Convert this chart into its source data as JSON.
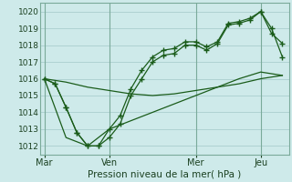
{
  "bg_color": "#ceeaea",
  "grid_color": "#aacece",
  "line_color": "#1a5c1a",
  "xlabel": "Pression niveau de la mer( hPa )",
  "ylim": [
    1011.5,
    1020.5
  ],
  "yticks": [
    1012,
    1013,
    1014,
    1015,
    1016,
    1017,
    1018,
    1019,
    1020
  ],
  "day_labels": [
    "Mar",
    "Ven",
    "Mer",
    "Jeu"
  ],
  "day_positions": [
    0,
    3,
    7,
    10
  ],
  "xlim": [
    -0.2,
    11.3
  ],
  "series_flat_x": [
    0,
    1,
    2,
    3,
    4,
    5,
    6,
    7,
    8,
    9,
    10,
    11
  ],
  "series_flat_y": [
    1016.0,
    1015.8,
    1015.5,
    1015.3,
    1015.1,
    1015.0,
    1015.1,
    1015.3,
    1015.5,
    1015.7,
    1016.0,
    1016.2
  ],
  "series_low_x": [
    0,
    0.5,
    1,
    1.5,
    2,
    2.5,
    3,
    3.5,
    4,
    4.5,
    5,
    5.5,
    6,
    6.5,
    7,
    7.5,
    8,
    8.5,
    9,
    9.5,
    10,
    10.5,
    11
  ],
  "series_low_y": [
    1016.0,
    1015.7,
    1014.3,
    1012.8,
    1012.0,
    1012.0,
    1012.5,
    1013.3,
    1015.0,
    1016.0,
    1017.0,
    1017.4,
    1017.5,
    1018.0,
    1018.0,
    1017.7,
    1018.1,
    1019.2,
    1019.3,
    1019.5,
    1020.0,
    1018.7,
    1018.1
  ],
  "series_hi_x": [
    0,
    0.5,
    1,
    1.5,
    2,
    2.5,
    3,
    3.5,
    4,
    4.5,
    5,
    5.5,
    6,
    6.5,
    7,
    7.5,
    8,
    8.5,
    9,
    9.5,
    10,
    10.5,
    11
  ],
  "series_hi_y": [
    1016.0,
    1015.7,
    1014.3,
    1012.8,
    1012.0,
    1012.0,
    1013.0,
    1013.8,
    1015.4,
    1016.5,
    1017.3,
    1017.7,
    1017.8,
    1018.2,
    1018.2,
    1017.9,
    1018.2,
    1019.3,
    1019.4,
    1019.6,
    1020.0,
    1019.0,
    1017.3
  ],
  "series_bot_x": [
    0,
    1,
    2,
    3,
    4,
    5,
    6,
    7,
    8,
    9,
    10,
    11
  ],
  "series_bot_y": [
    1016.0,
    1012.5,
    1012.0,
    1013.0,
    1013.5,
    1014.0,
    1014.5,
    1015.0,
    1015.5,
    1016.0,
    1016.4,
    1016.2
  ]
}
